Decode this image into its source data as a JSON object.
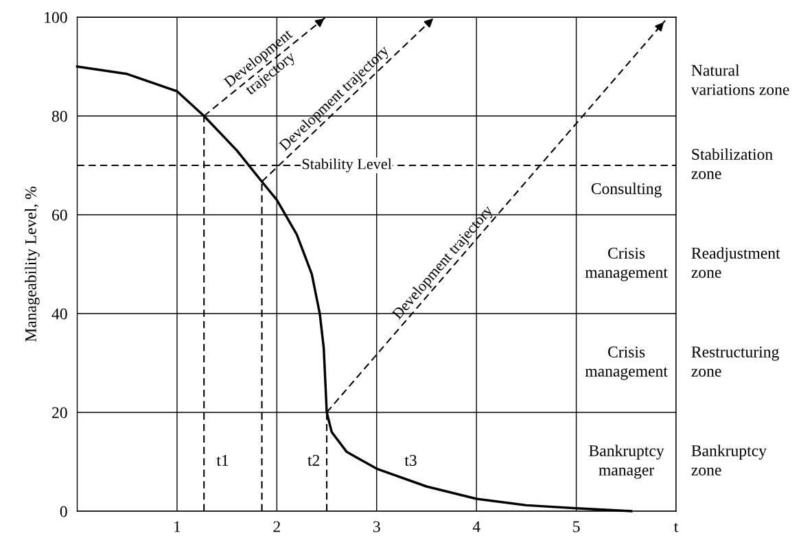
{
  "chart_data": {
    "type": "line",
    "ylabel": "Manageability Level, %",
    "xlim": [
      0,
      6
    ],
    "ylim": [
      0,
      100
    ],
    "xticks": [
      1,
      2,
      3,
      4,
      5,
      {
        "value": 6,
        "label": "t"
      }
    ],
    "yticks": [
      0,
      20,
      40,
      60,
      80,
      100
    ],
    "grid": true,
    "series": [
      {
        "color": "#000000",
        "line_style": "solid",
        "x": [
          0,
          0.5,
          1,
          1.27,
          1.6,
          1.85,
          2.0,
          2.2,
          2.35,
          2.43,
          2.47,
          2.5,
          2.55,
          2.7,
          3.0,
          3.5,
          4.0,
          4.5,
          5.0,
          5.55
        ],
        "values": [
          90,
          88.5,
          85,
          80,
          73,
          66.7,
          63,
          56,
          48,
          40,
          33,
          20,
          16,
          12,
          8.6,
          5,
          2.5,
          1.2,
          0.6,
          0
        ]
      },
      {
        "name": "Development\ntrajectory",
        "color": "#000000",
        "line_style": "dashed",
        "x": [
          1.27,
          2.49
        ],
        "values": [
          80,
          100
        ]
      },
      {
        "name": "Development trajectory",
        "color": "#000000",
        "line_style": "dashed",
        "x": [
          1.85,
          3.58
        ],
        "values": [
          66.7,
          100
        ]
      },
      {
        "name": "Development trajectory",
        "color": "#000000",
        "line_style": "dashed",
        "x": [
          2.5,
          5.89
        ],
        "values": [
          20,
          99.3
        ]
      },
      {
        "color": "#000000",
        "line_style": "dashed",
        "x": [
          1.27,
          1.27
        ],
        "values": [
          0,
          80
        ]
      },
      {
        "color": "#000000",
        "line_style": "dashed",
        "x": [
          1.85,
          1.85
        ],
        "values": [
          0,
          66.7
        ]
      },
      {
        "color": "#000000",
        "line_style": "dashed",
        "x": [
          2.5,
          2.5
        ],
        "values": [
          0,
          20
        ]
      }
    ],
    "ref_lines": [
      {
        "axis": "y",
        "value": 70,
        "label": "Stability Level",
        "color": "#000000",
        "line_style": "dashed"
      }
    ],
    "annotations": [
      "Natural\nvariations zone",
      "Stabilization\nzone",
      "Readjustment\nzone",
      "Restructuring\nzone",
      "Bankruptcy\nzone",
      "Consulting",
      "Crisis\nmanagement",
      "Crisis\nmanagement",
      "Bankruptcy\nmanager",
      "t1",
      "t2",
      "t3"
    ]
  }
}
